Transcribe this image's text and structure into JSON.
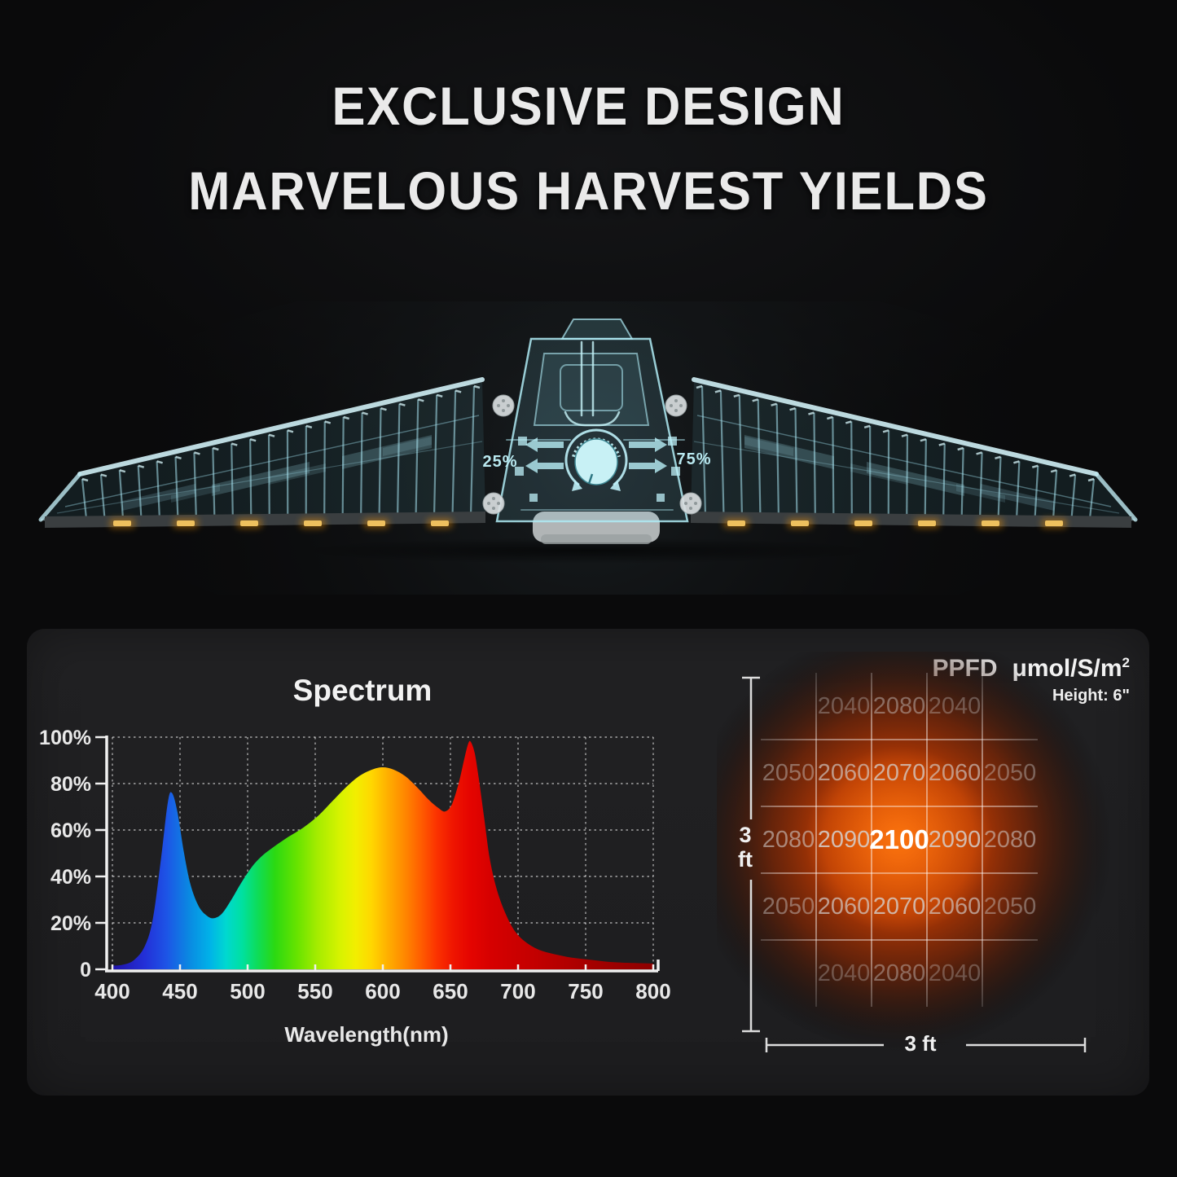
{
  "title": {
    "line1": "EXCLUSIVE DESIGN",
    "line2": "MARVELOUS HARVEST YIELDS"
  },
  "fixture": {
    "dimmer_left": "25%",
    "dimmer_right": "75%",
    "accent_color": "#9fe6f0",
    "led_color": "#eec05e"
  },
  "spectrum_panel": {
    "title": "Spectrum",
    "xlabel": "Wavelength(nm)"
  },
  "ppfd_panel": {
    "label": "PPFD",
    "unit": "μmol/S/m",
    "unit_sup": "2",
    "height_note": "Height: 6\"",
    "dim_v_line1": "3",
    "dim_v_line2": "ft",
    "dim_h": "3 ft"
  },
  "chart_data": [
    {
      "type": "area",
      "title": "Spectrum",
      "xlabel": "Wavelength(nm)",
      "xlim": [
        400,
        800
      ],
      "ylim": [
        0,
        100
      ],
      "x_ticks": [
        400,
        450,
        500,
        550,
        600,
        650,
        700,
        750,
        800
      ],
      "y_tick_levels": [
        100,
        80,
        60,
        40,
        20,
        0
      ],
      "y_tick_labels": [
        "100%",
        "80%",
        "60%",
        "40%",
        "20%",
        "0"
      ],
      "grid": "dotted",
      "legend": "none",
      "points": [
        [
          400,
          1.5
        ],
        [
          408,
          2
        ],
        [
          416,
          4
        ],
        [
          424,
          10
        ],
        [
          430,
          22
        ],
        [
          436,
          48
        ],
        [
          441,
          72
        ],
        [
          444,
          76
        ],
        [
          448,
          68
        ],
        [
          453,
          50
        ],
        [
          458,
          36
        ],
        [
          464,
          27
        ],
        [
          470,
          23
        ],
        [
          475,
          22
        ],
        [
          481,
          24
        ],
        [
          488,
          30
        ],
        [
          495,
          37
        ],
        [
          503,
          44
        ],
        [
          511,
          49
        ],
        [
          520,
          53
        ],
        [
          530,
          57
        ],
        [
          541,
          61
        ],
        [
          552,
          66
        ],
        [
          562,
          72
        ],
        [
          572,
          78
        ],
        [
          582,
          83
        ],
        [
          592,
          86
        ],
        [
          600,
          87
        ],
        [
          608,
          86
        ],
        [
          617,
          83
        ],
        [
          626,
          78
        ],
        [
          634,
          73
        ],
        [
          641,
          69.5
        ],
        [
          646,
          68
        ],
        [
          651,
          71
        ],
        [
          656,
          80
        ],
        [
          660,
          90
        ],
        [
          663,
          97
        ],
        [
          665,
          98
        ],
        [
          668,
          93
        ],
        [
          671,
          82
        ],
        [
          675,
          65
        ],
        [
          679,
          48
        ],
        [
          684,
          35
        ],
        [
          690,
          25
        ],
        [
          697,
          17
        ],
        [
          705,
          12
        ],
        [
          715,
          8.5
        ],
        [
          727,
          6.5
        ],
        [
          740,
          5
        ],
        [
          755,
          4
        ],
        [
          772,
          3
        ],
        [
          800,
          2.5
        ]
      ],
      "gradient_stops": [
        [
          0,
          "#1f12a8"
        ],
        [
          6,
          "#2330d8"
        ],
        [
          10,
          "#1d54e6"
        ],
        [
          14,
          "#0b87e2"
        ],
        [
          18,
          "#00b2e8"
        ],
        [
          21,
          "#00d8d0"
        ],
        [
          24,
          "#00e0a0"
        ],
        [
          27,
          "#0fdc55"
        ],
        [
          30,
          "#2bd912"
        ],
        [
          34,
          "#65e300"
        ],
        [
          38,
          "#a6ec00"
        ],
        [
          42,
          "#d6f300"
        ],
        [
          45,
          "#f2ee00"
        ],
        [
          48,
          "#ffd600"
        ],
        [
          51,
          "#ffae00"
        ],
        [
          54,
          "#ff8800"
        ],
        [
          57,
          "#ff5e00"
        ],
        [
          60,
          "#fb3200"
        ],
        [
          63,
          "#ef1500"
        ],
        [
          66,
          "#e50500"
        ],
        [
          70,
          "#d60000"
        ],
        [
          78,
          "#c30000"
        ],
        [
          88,
          "#a60000"
        ],
        [
          100,
          "#8e0000"
        ]
      ]
    },
    {
      "type": "heatmap",
      "title": "PPFD μmol/S/m²",
      "note": "Height: 6\"",
      "x_span": "3 ft",
      "y_span": "3 ft",
      "rows": 5,
      "cols": 5,
      "values": [
        [
          null,
          2040,
          2080,
          2040,
          null
        ],
        [
          2050,
          2060,
          2070,
          2060,
          2050
        ],
        [
          2080,
          2090,
          2100,
          2090,
          2080
        ],
        [
          2050,
          2060,
          2070,
          2060,
          2050
        ],
        [
          null,
          2040,
          2080,
          2040,
          null
        ]
      ],
      "value_opacity": [
        [
          0,
          0.32,
          0.42,
          0.32,
          0
        ],
        [
          0.42,
          0.62,
          0.72,
          0.6,
          0.38
        ],
        [
          0.55,
          0.82,
          1.0,
          0.8,
          0.52
        ],
        [
          0.42,
          0.66,
          0.76,
          0.62,
          0.4
        ],
        [
          0,
          0.3,
          0.4,
          0.3,
          0
        ]
      ],
      "peak_value": 2100,
      "glow_colors": [
        "#ff7a10",
        "#e04a02",
        "#7e2503"
      ]
    }
  ]
}
